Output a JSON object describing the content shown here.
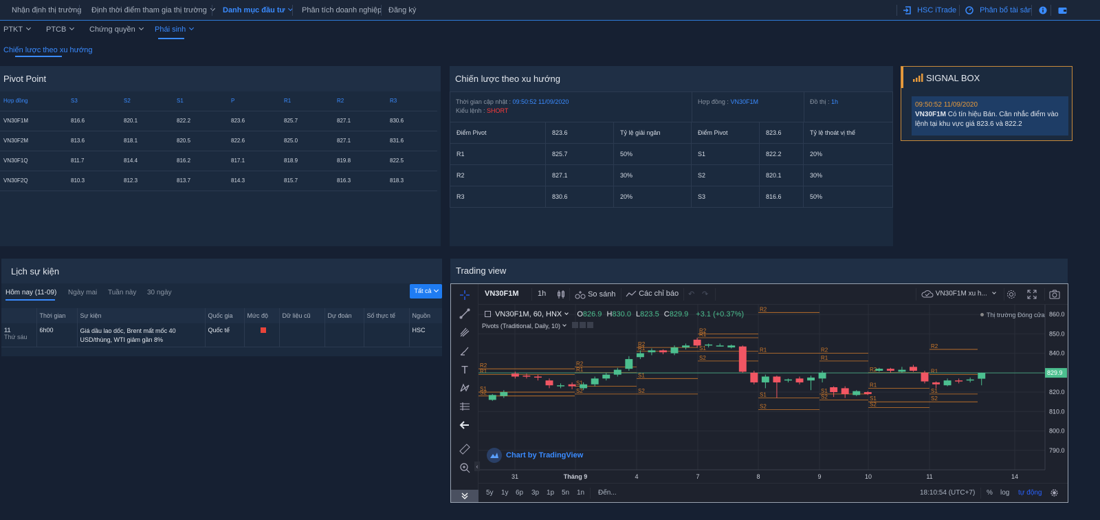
{
  "topnav": {
    "items": [
      {
        "label": "Nhận định thị trường"
      },
      {
        "label": "Định thời điểm tham gia thị trường"
      },
      {
        "label": "Danh mục đầu tư"
      },
      {
        "label": "Phân tích doanh nghiệp"
      },
      {
        "label": "Đăng ký"
      }
    ],
    "hsc_itrade": "HSC iTrade",
    "phan_bo": "Phân bổ tài sản"
  },
  "subnav": {
    "items": [
      {
        "label": "PTKT"
      },
      {
        "label": "PTCB"
      },
      {
        "label": "Chứng quyền"
      },
      {
        "label": "Phái sinh"
      }
    ],
    "third_level": "Chiến lược theo xu hướng"
  },
  "pivot": {
    "title": "Pivot Point",
    "headers": [
      "Hợp đồng",
      "S3",
      "S2",
      "S1",
      "P",
      "R1",
      "R2",
      "R3"
    ],
    "rows": [
      [
        "VN30F1M",
        "816.6",
        "820.1",
        "822.2",
        "823.6",
        "825.7",
        "827.1",
        "830.6"
      ],
      [
        "VN30F2M",
        "813.6",
        "818.1",
        "820.5",
        "822.6",
        "825.0",
        "827.1",
        "831.6"
      ],
      [
        "VN30F1Q",
        "811.7",
        "814.4",
        "816.2",
        "817.1",
        "818.9",
        "819.8",
        "822.5"
      ],
      [
        "VN30F2Q",
        "810.3",
        "812.3",
        "813.7",
        "814.3",
        "815.7",
        "816.3",
        "818.3"
      ]
    ]
  },
  "strategy": {
    "title": "Chiến lược theo xu hướng",
    "update_label": "Thời gian cập nhật : ",
    "update_value": "09:50:52 11/09/2020",
    "order_label": "Kiểu lệnh : ",
    "order_value": "SHORT",
    "contract_label": "Hợp đồng : ",
    "contract_value": "VN30F1M",
    "chart_label": "Đồ thị : ",
    "chart_value": "1h",
    "head": [
      "Điểm Pivot",
      "823.6",
      "Tỷ lệ giải ngân",
      "Điểm Pivot",
      "823.6",
      "Tỷ lệ thoát vị thế"
    ],
    "rows": [
      [
        "R1",
        "825.7",
        "50%",
        "S1",
        "822.2",
        "20%"
      ],
      [
        "R2",
        "827.1",
        "30%",
        "S2",
        "820.1",
        "30%"
      ],
      [
        "R3",
        "830.6",
        "20%",
        "S3",
        "816.6",
        "50%"
      ]
    ]
  },
  "signal": {
    "title": "SIGNAL BOX",
    "time": "09:50:52 11/09/2020",
    "symbol": "VN30F1M",
    "text": " Có tín hiệu Bán. Cân nhắc điểm vào lệnh tại khu vực giá 823.6 và 822.2"
  },
  "events": {
    "title": "Lịch sự kiện",
    "tabs": [
      "Hôm nay (11-09)",
      "Ngày mai",
      "Tuần này",
      "30 ngày"
    ],
    "filter": "Tất cả",
    "headers": [
      "",
      "Thời gian",
      "Sự kiện",
      "Quốc gia",
      "Mức độ",
      "Dữ liệu cũ",
      "Dự đoán",
      "Số thực tế",
      "Nguồn"
    ],
    "row": {
      "day": "11",
      "weekday": "Thứ sáu",
      "time": "6h00",
      "event": "Giá dầu lao dốc, Brent mất mốc 40 USD/thùng, WTI giảm gần 8%",
      "country": "Quốc tế",
      "source": "HSC"
    },
    "level_color": "#e8443a"
  },
  "trading": {
    "title": "Trading view",
    "symbol": "VN30F1M",
    "interval": "1h",
    "compare": "So sánh",
    "indicators": "Các chỉ báo",
    "saved_layout": "VN30F1M xu h...",
    "legend_main": "VN30F1M, 60, HNX",
    "o_label": "O",
    "o_val": "826.9",
    "h_label": "H",
    "h_val": "830.0",
    "l_label": "L",
    "l_val": "823.5",
    "c_label": "C",
    "c_val": "829.9",
    "change": "+3.1 (+0.37%)",
    "pivots_label": "Pivots (Traditional, Daily, 10)",
    "market_status": "Thị trường Đóng cửa",
    "watermark": "Chart by TradingView",
    "last_price": "829.9",
    "bottom": {
      "ranges": [
        "5y",
        "1y",
        "6p",
        "3p",
        "1p",
        "5n",
        "1n"
      ],
      "goto": "Đến...",
      "clock": "18:10:54 (UTC+7)",
      "pct": "%",
      "log": "log",
      "auto": "tự động"
    },
    "up_color": "#4cbf8f",
    "down_color": "#f25663",
    "pivot_color": "#d07a2a"
  },
  "chart_data": {
    "type": "candlestick",
    "ylim": [
      780,
      865
    ],
    "yticks": [
      "860.0",
      "850.0",
      "840.0",
      "830.0",
      "820.0",
      "810.0",
      "800.0",
      "790.0"
    ],
    "xtick_labels": [
      "31",
      "Tháng 9",
      "4",
      "7",
      "8",
      "9",
      "10",
      "11",
      "14"
    ],
    "candles": [
      {
        "o": 816.0,
        "c": 818.5,
        "h": 819.0,
        "l": 815.5
      },
      {
        "o": 818.0,
        "c": 820.0,
        "h": 821.0,
        "l": 817.0
      },
      {
        "o": 829.5,
        "c": 828.0,
        "h": 830.5,
        "l": 827.0
      },
      {
        "o": 828.5,
        "c": 828.0,
        "h": 829.5,
        "l": 827.0
      },
      {
        "o": 828.0,
        "c": 827.5,
        "h": 829.0,
        "l": 826.0
      },
      {
        "o": 826.0,
        "c": 823.5,
        "h": 827.0,
        "l": 822.0
      },
      {
        "o": 823.0,
        "c": 823.5,
        "h": 824.5,
        "l": 822.0
      },
      {
        "o": 824.0,
        "c": 823.0,
        "h": 825.0,
        "l": 821.5
      },
      {
        "o": 822.0,
        "c": 824.0,
        "h": 825.0,
        "l": 821.0
      },
      {
        "o": 824.0,
        "c": 827.0,
        "h": 828.0,
        "l": 823.0
      },
      {
        "o": 827.0,
        "c": 829.0,
        "h": 830.0,
        "l": 826.0
      },
      {
        "o": 829.0,
        "c": 831.5,
        "h": 832.5,
        "l": 828.0
      },
      {
        "o": 832.0,
        "c": 837.0,
        "h": 838.5,
        "l": 831.0
      },
      {
        "o": 838.0,
        "c": 840.0,
        "h": 841.5,
        "l": 837.0
      },
      {
        "o": 840.5,
        "c": 841.5,
        "h": 842.5,
        "l": 839.0
      },
      {
        "o": 841.5,
        "c": 840.5,
        "h": 842.0,
        "l": 839.5
      },
      {
        "o": 840.0,
        "c": 843.0,
        "h": 844.0,
        "l": 839.0
      },
      {
        "o": 843.0,
        "c": 844.0,
        "h": 845.0,
        "l": 842.0
      },
      {
        "o": 847.0,
        "c": 844.0,
        "h": 848.0,
        "l": 843.0
      },
      {
        "o": 844.0,
        "c": 844.5,
        "h": 845.0,
        "l": 843.0
      },
      {
        "o": 844.0,
        "c": 844.0,
        "h": 845.0,
        "l": 843.5
      },
      {
        "o": 843.0,
        "c": 844.0,
        "h": 844.5,
        "l": 842.5
      },
      {
        "o": 843.5,
        "c": 830.5,
        "h": 844.0,
        "l": 830.0
      },
      {
        "o": 830.0,
        "c": 825.0,
        "h": 831.0,
        "l": 824.0
      },
      {
        "o": 825.0,
        "c": 828.0,
        "h": 829.0,
        "l": 822.0
      },
      {
        "o": 828.0,
        "c": 825.0,
        "h": 828.5,
        "l": 817.0
      },
      {
        "o": 826.0,
        "c": 826.5,
        "h": 827.0,
        "l": 825.0
      },
      {
        "o": 827.0,
        "c": 825.0,
        "h": 828.0,
        "l": 824.0
      },
      {
        "o": 826.0,
        "c": 827.5,
        "h": 828.5,
        "l": 821.0
      },
      {
        "o": 827.0,
        "c": 830.0,
        "h": 831.0,
        "l": 825.0
      },
      {
        "o": 822.5,
        "c": 820.0,
        "h": 823.0,
        "l": 817.5
      },
      {
        "o": 822.0,
        "c": 819.0,
        "h": 823.0,
        "l": 817.0
      },
      {
        "o": 818.5,
        "c": 820.5,
        "h": 821.0,
        "l": 818.0
      },
      {
        "o": 820.0,
        "c": 819.0,
        "h": 820.5,
        "l": 818.5
      },
      {
        "o": 831.0,
        "c": 832.0,
        "h": 832.5,
        "l": 830.5
      },
      {
        "o": 832.0,
        "c": 831.0,
        "h": 832.5,
        "l": 830.0
      },
      {
        "o": 830.5,
        "c": 831.5,
        "h": 833.0,
        "l": 830.0
      },
      {
        "o": 833.0,
        "c": 831.0,
        "h": 834.0,
        "l": 830.5
      },
      {
        "o": 830.0,
        "c": 825.5,
        "h": 831.0,
        "l": 824.5
      },
      {
        "o": 825.0,
        "c": 824.0,
        "h": 825.5,
        "l": 822.0
      },
      {
        "o": 823.5,
        "c": 826.0,
        "h": 827.0,
        "l": 823.0
      },
      {
        "o": 826.0,
        "c": 825.5,
        "h": 827.0,
        "l": 824.5
      },
      {
        "o": 826.0,
        "c": 826.5,
        "h": 827.5,
        "l": 825.0
      },
      {
        "o": 826.9,
        "c": 829.9,
        "h": 830.0,
        "l": 823.5
      }
    ]
  }
}
